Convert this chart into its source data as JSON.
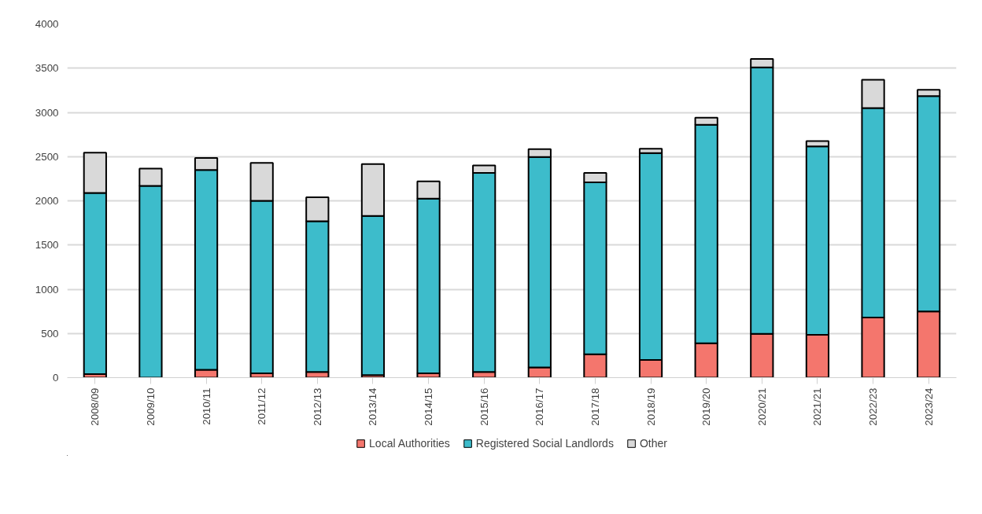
{
  "chart_data": {
    "type": "bar",
    "stacked": true,
    "categories": [
      "2008/09",
      "2009/10",
      "2010/11",
      "2011/12",
      "2012/13",
      "2013/14",
      "2014/15",
      "2015/16",
      "2016/17",
      "2017/18",
      "2018/19",
      "2019/20",
      "2020/21",
      "2021/21",
      "2022/23",
      "2023/24"
    ],
    "series": [
      {
        "name": "Local Authorities",
        "color": "#f4766d",
        "values": [
          40,
          0,
          90,
          50,
          65,
          30,
          50,
          65,
          115,
          265,
          200,
          390,
          495,
          485,
          680,
          750
        ]
      },
      {
        "name": "Registered Social Landlords",
        "color": "#3dbccb",
        "values": [
          2050,
          2170,
          2260,
          1950,
          1705,
          1800,
          1975,
          2250,
          2380,
          1945,
          2340,
          2470,
          3015,
          2130,
          2370,
          2435
        ]
      },
      {
        "name": "Other",
        "color": "#d9d9d9",
        "values": [
          455,
          195,
          135,
          430,
          270,
          585,
          195,
          85,
          90,
          105,
          50,
          80,
          95,
          60,
          320,
          70
        ]
      }
    ],
    "ylim": [
      0,
      4000
    ],
    "yticks": [
      0,
      500,
      1000,
      1500,
      2000,
      2500,
      3000,
      3500,
      4000
    ],
    "grid": "y",
    "legend": "bottom"
  }
}
